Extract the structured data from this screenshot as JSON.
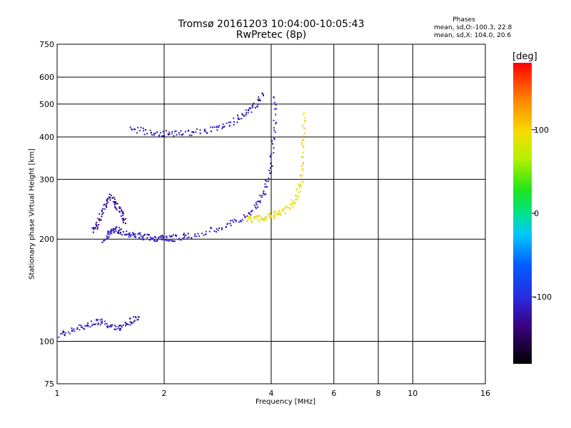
{
  "header": {
    "title": "Tromsø 20161203 10:04:00-10:05:43",
    "subtitle": "RwPretec (8p)"
  },
  "phases_box": {
    "heading": "Phases",
    "o_mode": "mean, sd,O:-100.3, 22.8",
    "x_mode": "mean, sd,X: 104.0, 20.6"
  },
  "colorbar": {
    "label": "[deg]",
    "ticks": [
      "100",
      "0",
      "-100"
    ],
    "tick_values": [
      100,
      0,
      -100
    ],
    "range": [
      -180,
      180
    ]
  },
  "colors": {
    "grid": "#000000",
    "background": "#ffffff"
  },
  "chart_data": {
    "type": "scatter",
    "title": "Tromsø 20161203 10:04:00-10:05:43",
    "subtitle": "RwPretec (8p)",
    "xlabel": "Frequency [MHz]",
    "ylabel": "Stationary phase Virtual Height [km]",
    "x_scale": "log",
    "y_scale": "log",
    "xlim": [
      1,
      16
    ],
    "ylim": [
      75,
      750
    ],
    "x_ticks": [
      "1",
      "2",
      "4",
      "6",
      "8",
      "10",
      "16"
    ],
    "x_tick_values": [
      1,
      2,
      4,
      6,
      8,
      10,
      16
    ],
    "y_ticks": [
      "750",
      "600",
      "500",
      "400",
      "300",
      "200",
      "100",
      "75"
    ],
    "y_tick_values": [
      750,
      600,
      500,
      400,
      300,
      200,
      100,
      75
    ],
    "grid": true,
    "color_scale": "phase [deg], -180 to 180",
    "traces": [
      {
        "x": [
          1.35,
          1.4,
          1.45,
          1.5,
          1.6,
          1.7,
          1.8,
          1.9,
          2.0,
          2.1,
          2.3,
          2.6,
          3.0,
          3.3,
          3.6,
          3.8,
          3.95,
          4.05,
          4.1
        ],
        "y": [
          200,
          210,
          215,
          212,
          208,
          205,
          203,
          202,
          201,
          202,
          205,
          210,
          220,
          232,
          250,
          275,
          320,
          400,
          550
        ],
        "phase": -115
      },
      {
        "x": [
          3.4,
          3.6,
          3.8,
          4.0,
          4.2,
          4.5,
          4.7,
          4.85,
          4.9,
          4.93
        ],
        "y": [
          230,
          230,
          232,
          235,
          240,
          250,
          268,
          300,
          380,
          480
        ],
        "phase": 95
      },
      {
        "x": [
          1.6,
          1.8,
          2.0,
          2.2,
          2.5,
          2.8,
          3.1,
          3.4,
          3.6,
          3.8
        ],
        "y": [
          425,
          415,
          410,
          412,
          415,
          425,
          445,
          470,
          500,
          540
        ],
        "phase": -115
      },
      {
        "x": [
          1.25,
          1.3,
          1.35,
          1.4,
          1.45,
          1.5,
          1.55
        ],
        "y": [
          210,
          225,
          250,
          270,
          255,
          240,
          225
        ],
        "phase": -130
      },
      {
        "x": [
          1.0,
          1.1,
          1.2,
          1.3,
          1.4,
          1.5,
          1.6,
          1.7
        ],
        "y": [
          105,
          108,
          112,
          115,
          112,
          110,
          115,
          118
        ],
        "phase": -115
      }
    ]
  }
}
